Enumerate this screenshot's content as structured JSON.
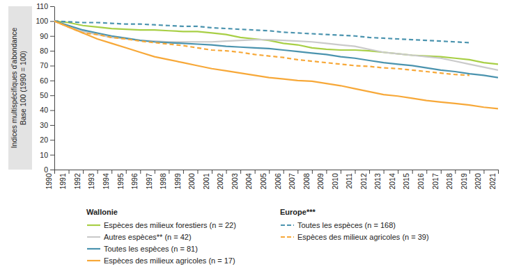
{
  "chart_data": {
    "type": "line",
    "y_label": [
      "Indices multispécifiques d'abondance",
      "Base 100 (1990 = 100)"
    ],
    "x": [
      1990,
      1991,
      1992,
      1993,
      1994,
      1995,
      1996,
      1997,
      1998,
      1999,
      2000,
      2001,
      2002,
      2003,
      2004,
      2005,
      2006,
      2007,
      2008,
      2009,
      2010,
      2011,
      2012,
      2013,
      2014,
      2015,
      2016,
      2017,
      2018,
      2019,
      2020,
      2021
    ],
    "xlim": [
      1990,
      2021
    ],
    "xticks": [
      1990,
      1991,
      1992,
      1993,
      1994,
      1995,
      1996,
      1997,
      1998,
      1999,
      2000,
      2001,
      2002,
      2003,
      2004,
      2005,
      2006,
      2007,
      2008,
      2009,
      2010,
      2011,
      2012,
      2013,
      2014,
      2015,
      2016,
      2017,
      2018,
      2019,
      2020,
      2021
    ],
    "ylim": [
      0,
      110
    ],
    "yticks": [
      0,
      10,
      20,
      30,
      40,
      50,
      60,
      70,
      80,
      90,
      100,
      110
    ],
    "grid": false,
    "series": [
      {
        "name": "Espèces des milieux forestiers (n = 22)",
        "legend_group": "Wallonie",
        "color": "#a8cf45",
        "line_style": "solid",
        "values": [
          100,
          99,
          97,
          96,
          95,
          94.5,
          94,
          94,
          93.5,
          93,
          93,
          92,
          91,
          89,
          88,
          87,
          85,
          84,
          82,
          81,
          80.5,
          80.5,
          80,
          79,
          78,
          77,
          76.5,
          76,
          75,
          74,
          72,
          71
        ]
      },
      {
        "name": "Autres espèces** (n = 42)",
        "legend_group": "Wallonie",
        "color": "#cacaca",
        "line_style": "solid",
        "values": [
          100,
          96,
          93,
          91,
          89,
          88,
          87,
          86.5,
          86,
          86,
          86,
          86,
          86.5,
          87,
          87.5,
          87.5,
          87,
          86.5,
          86,
          85,
          84,
          83,
          81,
          79,
          78,
          77,
          76,
          75,
          73,
          71,
          69,
          67
        ]
      },
      {
        "name": "Toutes les espèces (n = 81)",
        "legend_group": "Wallonie",
        "color": "#4a93ae",
        "line_style": "solid",
        "values": [
          100,
          97,
          94,
          92,
          90,
          88.5,
          87,
          86,
          85.5,
          85,
          84.5,
          84,
          83,
          82.5,
          82,
          81.5,
          80.5,
          79.5,
          78.5,
          77.5,
          76,
          75,
          73.5,
          72,
          71,
          70,
          68.5,
          67,
          66,
          64.5,
          63.5,
          62
        ]
      },
      {
        "name": "Espèces des milieux agricoles (n = 17)",
        "legend_group": "Wallonie",
        "color": "#f7a838",
        "line_style": "solid",
        "values": [
          100,
          96,
          92,
          88,
          85,
          82,
          79,
          76,
          74,
          72,
          70,
          68,
          66.5,
          65,
          63.5,
          62,
          61,
          60,
          59.5,
          58,
          56.5,
          54.5,
          52.5,
          50.5,
          49.5,
          48,
          46.5,
          45.5,
          44.5,
          43.5,
          42,
          41
        ]
      },
      {
        "name": "Toutes les espèces (n = 168)",
        "legend_group": "Europe***",
        "color": "#4a93ae",
        "line_style": "dashed",
        "values": [
          100,
          99.5,
          99,
          99,
          98.5,
          98,
          98,
          97.5,
          97,
          96.5,
          96.5,
          95.5,
          95,
          94.5,
          94,
          93.5,
          92.5,
          92,
          91.5,
          91,
          90.5,
          90,
          89,
          88.5,
          88,
          87.5,
          87,
          86.5,
          86,
          85.5,
          null,
          null
        ]
      },
      {
        "name": "Espèces des milieux agricoles (n = 39)",
        "legend_group": "Europe***",
        "color": "#f7a838",
        "line_style": "dashed",
        "values": [
          100,
          96,
          92,
          91,
          89,
          88,
          86.5,
          85.5,
          84.5,
          83.5,
          82,
          80.5,
          80,
          79,
          77.5,
          76.5,
          75.5,
          74,
          73,
          72,
          71,
          70,
          69.5,
          68.5,
          68,
          67,
          66,
          65,
          64,
          63.5,
          null,
          null
        ]
      }
    ]
  }
}
